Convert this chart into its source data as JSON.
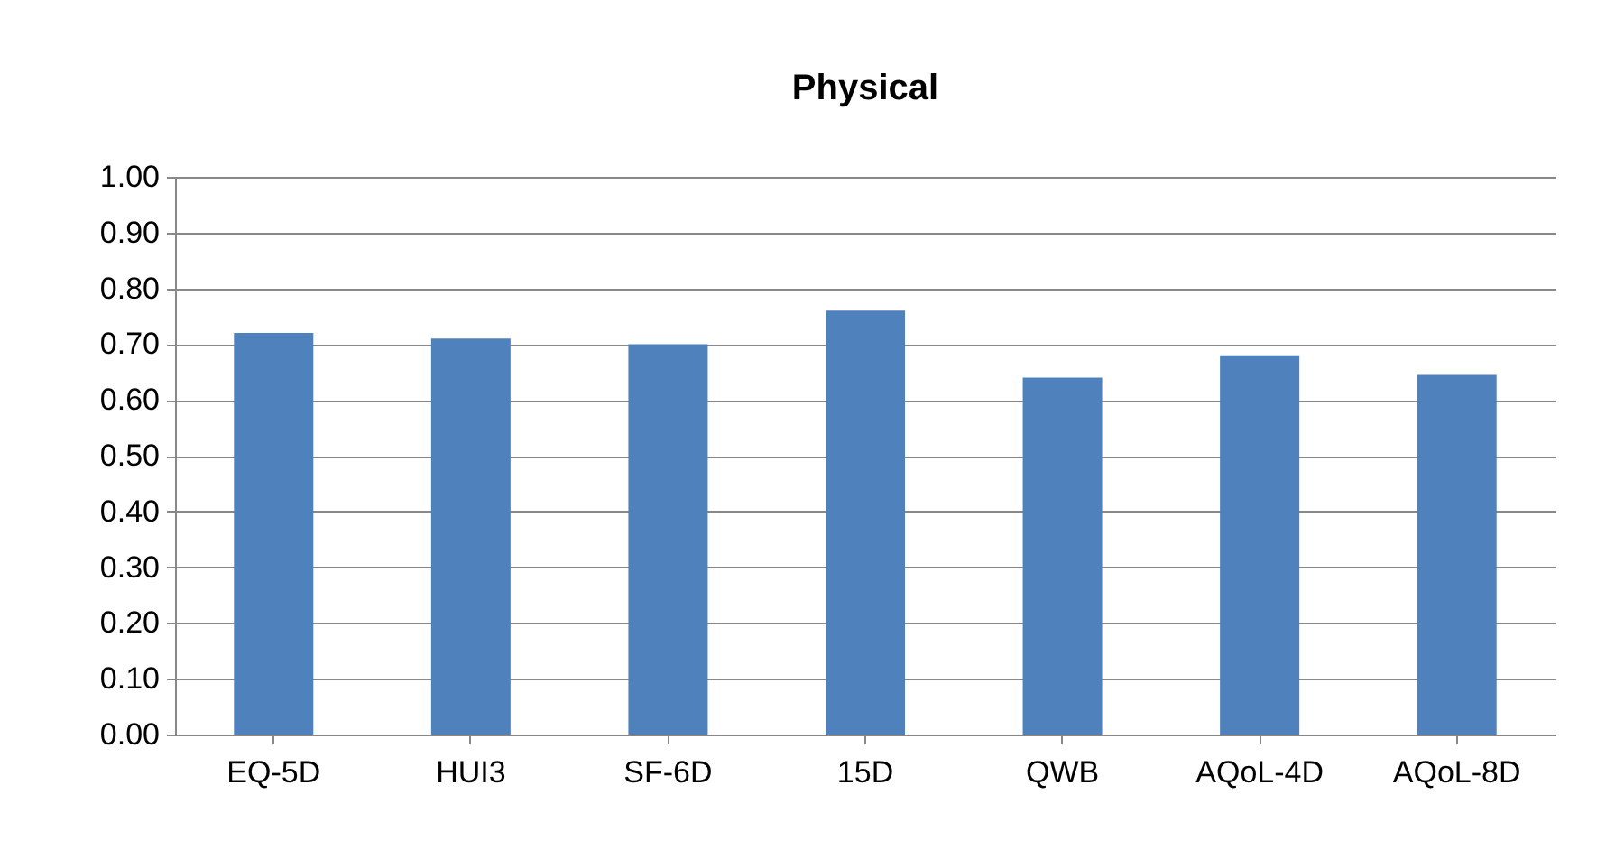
{
  "chart_data": {
    "type": "bar",
    "title": "Physical",
    "categories": [
      "EQ-5D",
      "HUI3",
      "SF-6D",
      "15D",
      "QWB",
      "AQoL-4D",
      "AQoL-8D"
    ],
    "values": [
      0.72,
      0.71,
      0.7,
      0.76,
      0.64,
      0.68,
      0.645
    ],
    "color": "#4f81bd",
    "ylim": [
      0,
      1
    ],
    "yticks": [
      {
        "value": 0,
        "label": "0.00"
      },
      {
        "value": 0.1,
        "label": "0.10"
      },
      {
        "value": 0.2,
        "label": "0.20"
      },
      {
        "value": 0.3,
        "label": "0.30"
      },
      {
        "value": 0.4,
        "label": "0.40"
      },
      {
        "value": 0.5,
        "label": "0.50"
      },
      {
        "value": 0.6,
        "label": "0.60"
      },
      {
        "value": 0.7,
        "label": "0.70"
      },
      {
        "value": 0.8,
        "label": "0.80"
      },
      {
        "value": 0.9,
        "label": "0.90"
      },
      {
        "value": 1,
        "label": "1.00"
      }
    ],
    "grid": "y"
  }
}
